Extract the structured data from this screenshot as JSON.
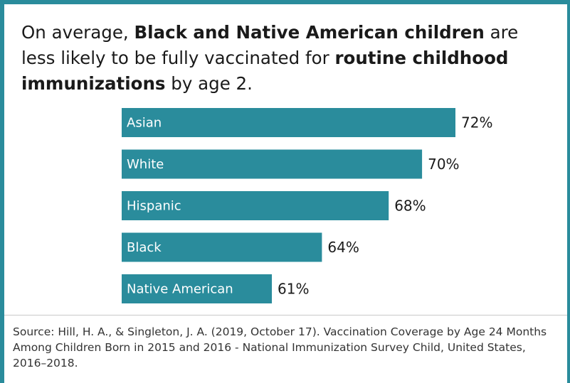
{
  "title": {
    "t1": "On average, ",
    "b1": "Black and Native American children",
    "t2": "  are less likely to be fully vaccinated for ",
    "b2": "routine childhood immunizations",
    "t3": " by age 2."
  },
  "source": "Source: Hill, H. A., & Singleton, J. A. (2019, October 17). Vaccination Coverage by Age 24 Months Among Children Born in 2015 and 2016 - National Immunization Survey Child, United States, 2016–2018.",
  "colors": {
    "bar": "#2a8c9c",
    "frame": "#2a8c9c"
  },
  "chart_data": {
    "type": "bar",
    "orientation": "horizontal",
    "categories": [
      "Asian",
      "White",
      "Hispanic",
      "Black",
      "Native American"
    ],
    "values": [
      72,
      70,
      68,
      64,
      61
    ],
    "value_labels": [
      "72%",
      "70%",
      "68%",
      "64%",
      "61%"
    ],
    "xlim": [
      52,
      72
    ],
    "grid": false,
    "legend": "none"
  }
}
